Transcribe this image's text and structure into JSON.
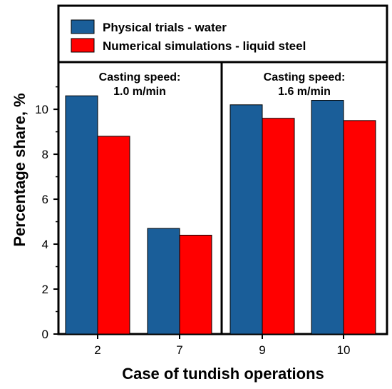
{
  "chart_data": {
    "type": "bar",
    "categories": [
      "2",
      "7",
      "9",
      "10"
    ],
    "series": [
      {
        "name": "Physical trials - water",
        "color": "#1a5e99",
        "values": [
          10.6,
          4.7,
          10.2,
          10.4
        ]
      },
      {
        "name": "Numerical simulations - liquid steel",
        "color": "#ff0000",
        "values": [
          8.8,
          4.4,
          9.6,
          9.5
        ]
      }
    ],
    "xlabel": "Case of tundish operations",
    "ylabel": "Percentage share, %",
    "ylim": [
      0,
      12.1
    ],
    "yticks": [
      0,
      2,
      4,
      6,
      8,
      10
    ],
    "legend_position": "top",
    "panels": [
      {
        "line1": "Casting speed:",
        "line2": "1.0 m/min"
      },
      {
        "line1": "Casting speed:",
        "line2": "1.6 m/min"
      }
    ]
  }
}
